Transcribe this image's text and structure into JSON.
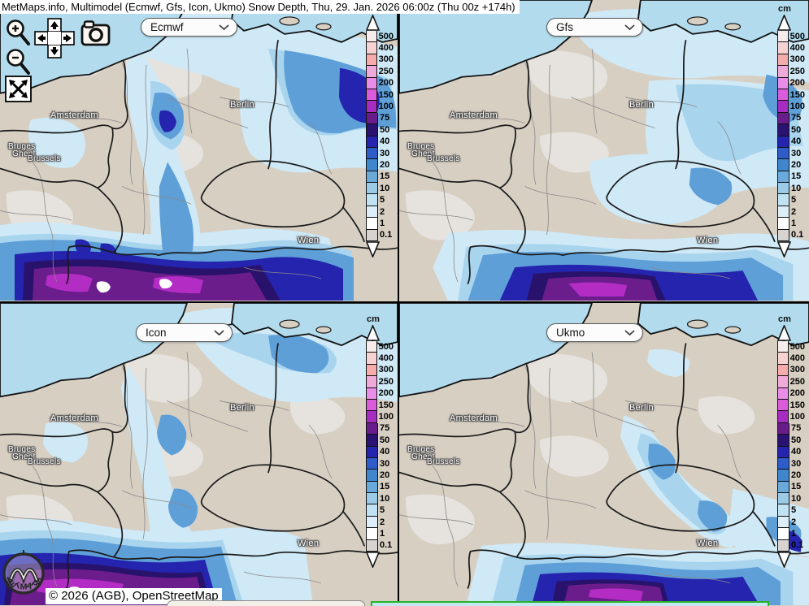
{
  "title": "MetMaps.info, Multimodel (Ecmwf, Gfs, Icon, Ukmo) Snow Depth, Thu, 29. Jan. 2026 06:00z (Thu 00z +174h)",
  "panels": [
    {
      "model": "Ecmwf"
    },
    {
      "model": "Gfs"
    },
    {
      "model": "Icon"
    },
    {
      "model": "Ukmo"
    }
  ],
  "colorbar": {
    "unit": "cm",
    "ticks": [
      "500",
      "400",
      "300",
      "250",
      "200",
      "150",
      "100",
      "75",
      "50",
      "40",
      "30",
      "20",
      "15",
      "10",
      "5",
      "2",
      "1",
      "0.1"
    ],
    "colors": [
      "#f6ecec",
      "#f6d2d2",
      "#f7acac",
      "#efaada",
      "#e98de9",
      "#da5cda",
      "#a62cc2",
      "#691d8a",
      "#2a1270",
      "#2424ae",
      "#2e5cc8",
      "#3f86cd",
      "#69aadb",
      "#9ccbe8",
      "#c1e2f2",
      "#ddeef8",
      "#ffffff",
      "#d6d3d0"
    ]
  },
  "cities": [
    "Amsterdam",
    "Berlin",
    "Bruges",
    "Ghent",
    "Brussels",
    "Wien"
  ],
  "controls": {
    "zoom_in": "zoom-in",
    "zoom_out": "zoom-out",
    "pan": "pan-arrows",
    "screenshot": "camera",
    "fullscreen": "fullscreen"
  },
  "attribution": "© 2026 (AGB), OpenStreetMap",
  "logo": "METMAPS",
  "accent_colors": {
    "sea": "#b2dcee",
    "land": "#d8cfc3",
    "trace_gray": "#e6e3de"
  }
}
